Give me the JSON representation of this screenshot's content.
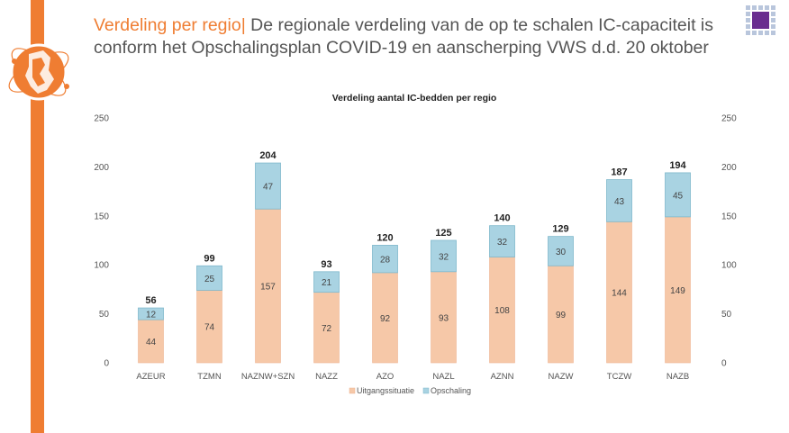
{
  "header": {
    "accent_title": "Verdeling per regio|",
    "title_rest": " De regionale verdeling  van de op te schalen IC-capaciteit is conform het Opschalingsplan COVID-19 en aanscherping VWS d.d. 20 oktober"
  },
  "colors": {
    "accent": "#ef7d32",
    "base_series": "#f6c8a8",
    "scale_series": "#a9d3e2",
    "logo_purple": "#6a2d8f"
  },
  "chart_data": {
    "type": "bar",
    "stacked": true,
    "title": "Verdeling aantal IC-bedden per regio",
    "categories": [
      "AZEUR",
      "TZMN",
      "NAZNW+SZN",
      "NAZZ",
      "AZO",
      "NAZL",
      "AZNN",
      "NAZW",
      "TCZW",
      "NAZB"
    ],
    "series": [
      {
        "name": "Uitgangssituatie",
        "values": [
          44,
          74,
          157,
          72,
          92,
          93,
          108,
          99,
          144,
          149
        ]
      },
      {
        "name": "Opschaling",
        "values": [
          12,
          25,
          47,
          21,
          28,
          32,
          32,
          30,
          43,
          45
        ]
      }
    ],
    "totals": [
      56,
      99,
      204,
      93,
      120,
      125,
      140,
      129,
      187,
      194
    ],
    "ylim": [
      0,
      250
    ],
    "yticks": [
      0,
      50,
      100,
      150,
      200,
      250
    ],
    "grid": false,
    "legend_position": "bottom",
    "secondary_axis": true
  }
}
